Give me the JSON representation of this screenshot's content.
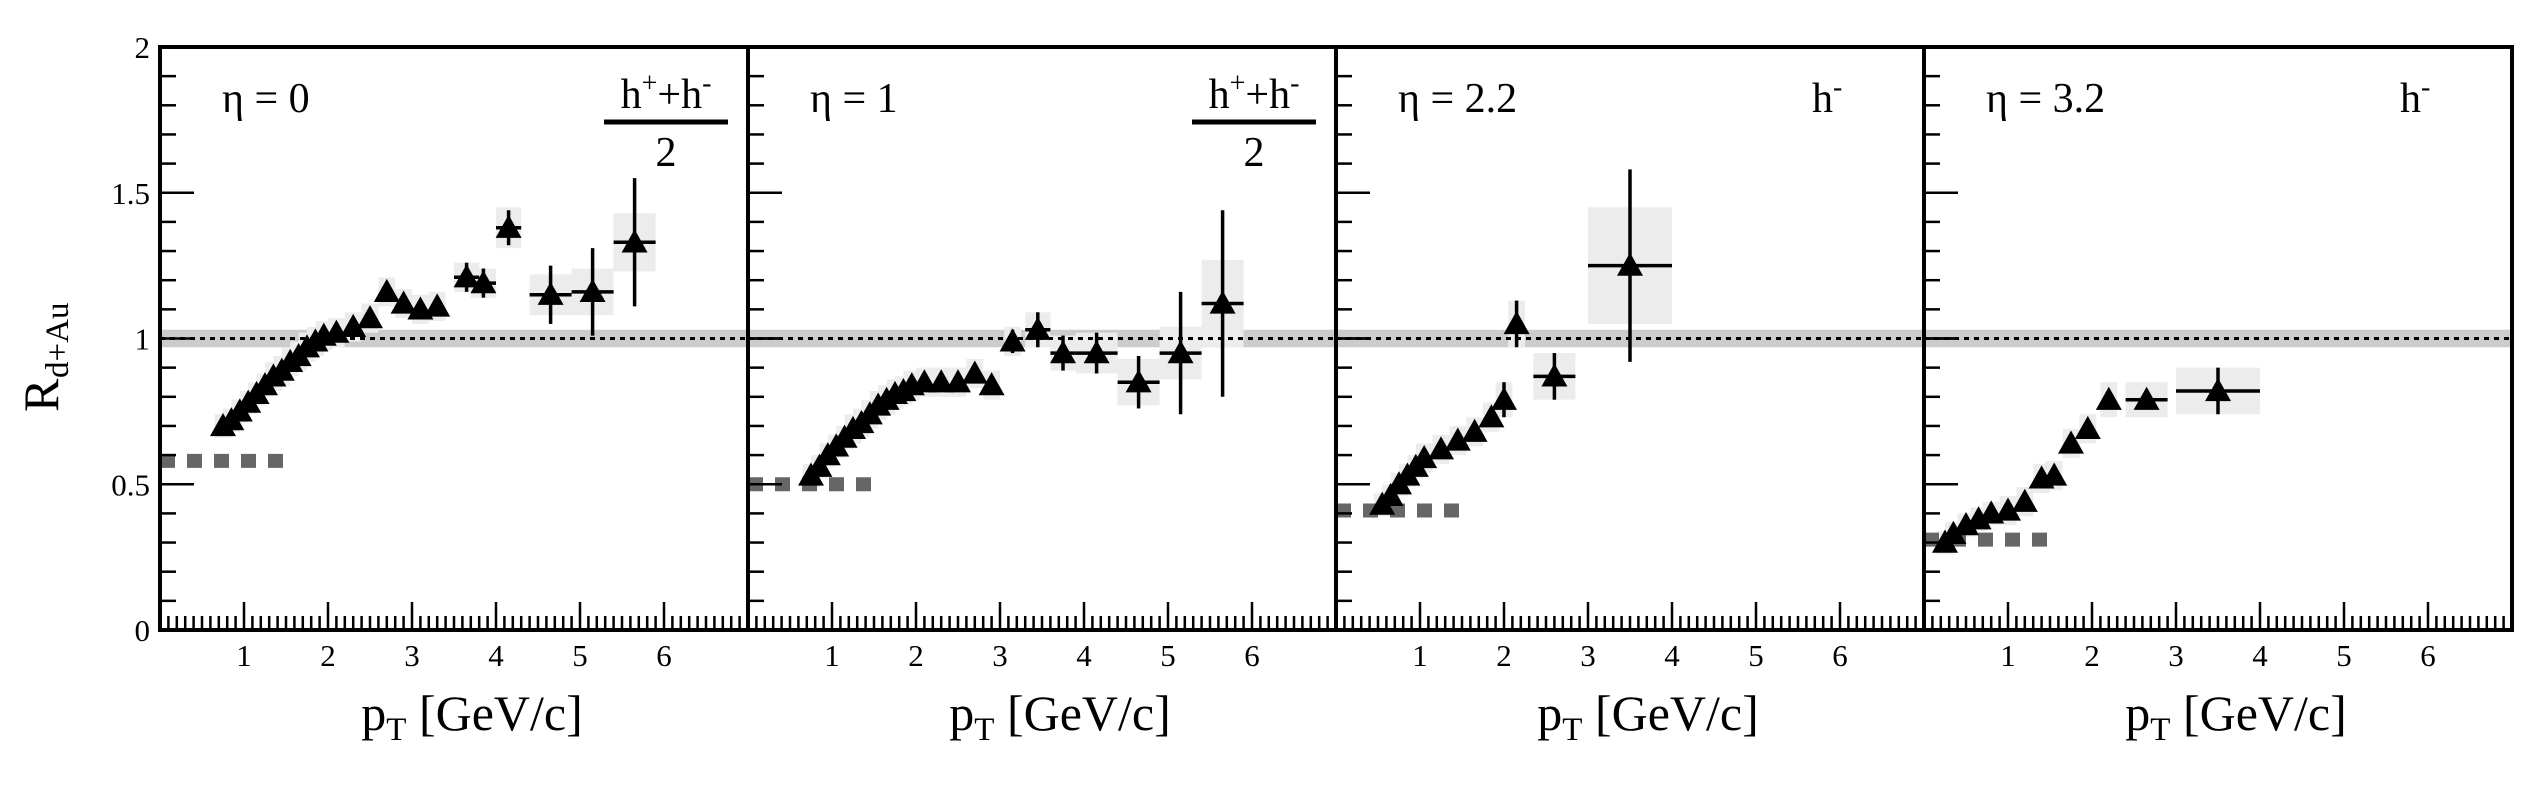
{
  "figure": {
    "ylabel": "R",
    "ylabel_sub": "d+Au",
    "xlabel": "p",
    "xlabel_sub": "T",
    "xlabel_unit": " [GeV/c]"
  },
  "chart_data": [
    {
      "type": "scatter",
      "panel_label": "η = 0",
      "species": "h⁺+h⁻ / 2",
      "species_numerator": [
        "h",
        "+",
        "+h",
        "-"
      ],
      "species_denominator": "2",
      "xlim": [
        0,
        7
      ],
      "ylim": [
        0,
        2
      ],
      "xticks": [
        "1",
        "2",
        "3",
        "4",
        "5",
        "6"
      ],
      "yticks": [
        "0",
        "0.5",
        "1",
        "1.5",
        "2"
      ],
      "reference_line": 1,
      "normalization_band": [
        0.97,
        1.03
      ],
      "series": [
        {
          "marker": "filled-triangle",
          "points": [
            {
              "x": 0.75,
              "y": 0.7,
              "err": 0.02,
              "sys": 0.04
            },
            {
              "x": 0.85,
              "y": 0.72,
              "err": 0.02,
              "sys": 0.04
            },
            {
              "x": 0.95,
              "y": 0.75,
              "err": 0.02,
              "sys": 0.04
            },
            {
              "x": 1.05,
              "y": 0.78,
              "err": 0.02,
              "sys": 0.04
            },
            {
              "x": 1.15,
              "y": 0.81,
              "err": 0.02,
              "sys": 0.04
            },
            {
              "x": 1.25,
              "y": 0.84,
              "err": 0.02,
              "sys": 0.04
            },
            {
              "x": 1.35,
              "y": 0.87,
              "err": 0.02,
              "sys": 0.05
            },
            {
              "x": 1.45,
              "y": 0.89,
              "err": 0.02,
              "sys": 0.05
            },
            {
              "x": 1.55,
              "y": 0.92,
              "err": 0.02,
              "sys": 0.05
            },
            {
              "x": 1.65,
              "y": 0.94,
              "err": 0.02,
              "sys": 0.05
            },
            {
              "x": 1.75,
              "y": 0.97,
              "err": 0.02,
              "sys": 0.05
            },
            {
              "x": 1.85,
              "y": 0.99,
              "err": 0.02,
              "sys": 0.05
            },
            {
              "x": 1.95,
              "y": 1.01,
              "err": 0.02,
              "sys": 0.05
            },
            {
              "x": 2.1,
              "y": 1.02,
              "err": 0.02,
              "sys": 0.05
            },
            {
              "x": 2.3,
              "y": 1.04,
              "err": 0.02,
              "sys": 0.05
            },
            {
              "x": 2.5,
              "y": 1.07,
              "err": 0.03,
              "sys": 0.05
            },
            {
              "x": 2.7,
              "y": 1.16,
              "err": 0.03,
              "sys": 0.05
            },
            {
              "x": 2.9,
              "y": 1.12,
              "err": 0.03,
              "sys": 0.05
            },
            {
              "x": 3.1,
              "y": 1.1,
              "err": 0.03,
              "sys": 0.05
            },
            {
              "x": 3.3,
              "y": 1.11,
              "err": 0.03,
              "sys": 0.05
            },
            {
              "x": 3.65,
              "y": 1.21,
              "err": 0.05,
              "sys": 0.05,
              "xerr": 0.15
            },
            {
              "x": 3.85,
              "y": 1.19,
              "err": 0.05,
              "sys": 0.05,
              "xerr": 0.15
            },
            {
              "x": 4.15,
              "y": 1.38,
              "err": 0.06,
              "sys": 0.07,
              "xerr": 0.15
            },
            {
              "x": 4.65,
              "y": 1.15,
              "err": 0.1,
              "sys": 0.07,
              "xerr": 0.25
            },
            {
              "x": 5.15,
              "y": 1.16,
              "err": 0.15,
              "sys": 0.08,
              "xerr": 0.25
            },
            {
              "x": 5.65,
              "y": 1.33,
              "err": 0.22,
              "sys": 0.1,
              "xerr": 0.25
            }
          ]
        },
        {
          "marker": "dashed-gray",
          "y": 0.58,
          "x_range": [
            0,
            1.5
          ]
        }
      ]
    },
    {
      "type": "scatter",
      "panel_label": "η = 1",
      "species": "h⁺+h⁻ / 2",
      "species_numerator": [
        "h",
        "+",
        "+h",
        "-"
      ],
      "species_denominator": "2",
      "xlim": [
        0,
        7
      ],
      "ylim": [
        0,
        2
      ],
      "xticks": [
        "1",
        "2",
        "3",
        "4",
        "5",
        "6"
      ],
      "yticks": [
        "0",
        "0.5",
        "1",
        "1.5",
        "2"
      ],
      "reference_line": 1,
      "normalization_band": [
        0.97,
        1.03
      ],
      "series": [
        {
          "marker": "filled-triangle",
          "points": [
            {
              "x": 0.75,
              "y": 0.53,
              "err": 0.02,
              "sys": 0.04
            },
            {
              "x": 0.85,
              "y": 0.56,
              "err": 0.02,
              "sys": 0.04
            },
            {
              "x": 0.95,
              "y": 0.6,
              "err": 0.02,
              "sys": 0.04
            },
            {
              "x": 1.05,
              "y": 0.63,
              "err": 0.02,
              "sys": 0.04
            },
            {
              "x": 1.15,
              "y": 0.66,
              "err": 0.02,
              "sys": 0.04
            },
            {
              "x": 1.25,
              "y": 0.69,
              "err": 0.02,
              "sys": 0.05
            },
            {
              "x": 1.35,
              "y": 0.71,
              "err": 0.02,
              "sys": 0.05
            },
            {
              "x": 1.45,
              "y": 0.74,
              "err": 0.02,
              "sys": 0.05
            },
            {
              "x": 1.55,
              "y": 0.77,
              "err": 0.02,
              "sys": 0.05
            },
            {
              "x": 1.65,
              "y": 0.79,
              "err": 0.02,
              "sys": 0.05
            },
            {
              "x": 1.75,
              "y": 0.81,
              "err": 0.02,
              "sys": 0.05
            },
            {
              "x": 1.85,
              "y": 0.82,
              "err": 0.02,
              "sys": 0.05
            },
            {
              "x": 1.95,
              "y": 0.84,
              "err": 0.02,
              "sys": 0.05
            },
            {
              "x": 2.1,
              "y": 0.85,
              "err": 0.02,
              "sys": 0.05
            },
            {
              "x": 2.3,
              "y": 0.85,
              "err": 0.02,
              "sys": 0.05
            },
            {
              "x": 2.5,
              "y": 0.85,
              "err": 0.03,
              "sys": 0.05
            },
            {
              "x": 2.7,
              "y": 0.88,
              "err": 0.03,
              "sys": 0.05
            },
            {
              "x": 2.9,
              "y": 0.84,
              "err": 0.03,
              "sys": 0.05
            },
            {
              "x": 3.15,
              "y": 0.99,
              "err": 0.04,
              "sys": 0.05
            },
            {
              "x": 3.45,
              "y": 1.03,
              "err": 0.06,
              "sys": 0.06,
              "xerr": 0.15
            },
            {
              "x": 3.75,
              "y": 0.95,
              "err": 0.06,
              "sys": 0.06,
              "xerr": 0.15
            },
            {
              "x": 4.15,
              "y": 0.95,
              "err": 0.07,
              "sys": 0.07,
              "xerr": 0.25
            },
            {
              "x": 4.65,
              "y": 0.85,
              "err": 0.09,
              "sys": 0.08,
              "xerr": 0.25
            },
            {
              "x": 5.15,
              "y": 0.95,
              "err": 0.21,
              "sys": 0.09,
              "xerr": 0.25
            },
            {
              "x": 5.65,
              "y": 1.12,
              "err": 0.32,
              "sys": 0.15,
              "xerr": 0.25
            }
          ]
        },
        {
          "marker": "dashed-gray",
          "y": 0.5,
          "x_range": [
            0,
            1.5
          ]
        }
      ]
    },
    {
      "type": "scatter",
      "panel_label": "η = 2.2",
      "species": "h⁻",
      "species_numerator": [
        "h",
        "-"
      ],
      "species_denominator": "",
      "xlim": [
        0,
        7
      ],
      "ylim": [
        0,
        2
      ],
      "xticks": [
        "1",
        "2",
        "3",
        "4",
        "5",
        "6"
      ],
      "yticks": [
        "0",
        "0.5",
        "1",
        "1.5",
        "2"
      ],
      "reference_line": 1,
      "normalization_band": [
        0.97,
        1.03
      ],
      "series": [
        {
          "marker": "filled-triangle",
          "points": [
            {
              "x": 0.55,
              "y": 0.43,
              "err": 0.02,
              "sys": 0.04
            },
            {
              "x": 0.65,
              "y": 0.46,
              "err": 0.02,
              "sys": 0.04
            },
            {
              "x": 0.75,
              "y": 0.5,
              "err": 0.02,
              "sys": 0.04
            },
            {
              "x": 0.85,
              "y": 0.53,
              "err": 0.02,
              "sys": 0.04
            },
            {
              "x": 0.95,
              "y": 0.56,
              "err": 0.02,
              "sys": 0.04
            },
            {
              "x": 1.05,
              "y": 0.59,
              "err": 0.02,
              "sys": 0.05
            },
            {
              "x": 1.25,
              "y": 0.62,
              "err": 0.02,
              "sys": 0.05
            },
            {
              "x": 1.45,
              "y": 0.65,
              "err": 0.02,
              "sys": 0.05
            },
            {
              "x": 1.65,
              "y": 0.68,
              "err": 0.03,
              "sys": 0.05
            },
            {
              "x": 1.85,
              "y": 0.73,
              "err": 0.03,
              "sys": 0.05
            },
            {
              "x": 2.0,
              "y": 0.79,
              "err": 0.06,
              "sys": 0.06
            },
            {
              "x": 2.15,
              "y": 1.05,
              "err": 0.08,
              "sys": 0.08
            },
            {
              "x": 2.6,
              "y": 0.87,
              "err": 0.08,
              "sys": 0.08,
              "xerr": 0.25
            },
            {
              "x": 3.5,
              "y": 1.25,
              "err": 0.33,
              "sys": 0.2,
              "xerr": 0.5
            }
          ]
        },
        {
          "marker": "dashed-gray",
          "y": 0.41,
          "x_range": [
            0,
            1.5
          ]
        }
      ]
    },
    {
      "type": "scatter",
      "panel_label": "η = 3.2",
      "species": "h⁻",
      "species_numerator": [
        "h",
        "-"
      ],
      "species_denominator": "",
      "xlim": [
        0,
        7
      ],
      "ylim": [
        0,
        2
      ],
      "xticks": [
        "1",
        "2",
        "3",
        "4",
        "5",
        "6"
      ],
      "yticks": [
        "0",
        "0.5",
        "1",
        "1.5",
        "2"
      ],
      "reference_line": 1,
      "normalization_band": [
        0.97,
        1.03
      ],
      "series": [
        {
          "marker": "filled-triangle",
          "points": [
            {
              "x": 0.25,
              "y": 0.3,
              "err": 0.02,
              "sys": 0.04
            },
            {
              "x": 0.35,
              "y": 0.33,
              "err": 0.02,
              "sys": 0.04
            },
            {
              "x": 0.5,
              "y": 0.36,
              "err": 0.02,
              "sys": 0.04
            },
            {
              "x": 0.65,
              "y": 0.38,
              "err": 0.02,
              "sys": 0.04
            },
            {
              "x": 0.8,
              "y": 0.4,
              "err": 0.02,
              "sys": 0.04
            },
            {
              "x": 1.0,
              "y": 0.41,
              "err": 0.02,
              "sys": 0.05
            },
            {
              "x": 1.2,
              "y": 0.44,
              "err": 0.02,
              "sys": 0.05
            },
            {
              "x": 1.4,
              "y": 0.52,
              "err": 0.03,
              "sys": 0.05
            },
            {
              "x": 1.55,
              "y": 0.53,
              "err": 0.03,
              "sys": 0.05
            },
            {
              "x": 1.75,
              "y": 0.64,
              "err": 0.03,
              "sys": 0.05
            },
            {
              "x": 1.95,
              "y": 0.69,
              "err": 0.03,
              "sys": 0.05
            },
            {
              "x": 2.2,
              "y": 0.79,
              "err": 0.03,
              "sys": 0.06
            },
            {
              "x": 2.65,
              "y": 0.79,
              "err": 0.03,
              "sys": 0.06,
              "xerr": 0.25
            },
            {
              "x": 3.5,
              "y": 0.82,
              "err": 0.08,
              "sys": 0.08,
              "xerr": 0.5
            }
          ]
        },
        {
          "marker": "dashed-gray",
          "y": 0.31,
          "x_range": [
            0,
            1.5
          ]
        }
      ]
    }
  ]
}
